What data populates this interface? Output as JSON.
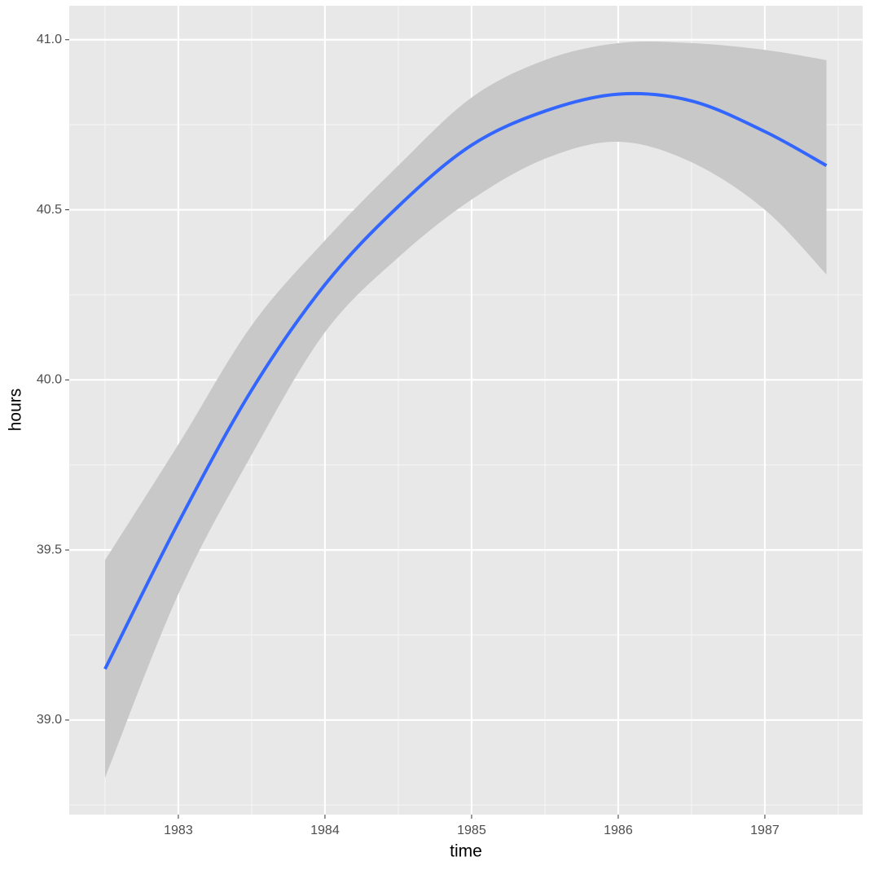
{
  "chart_data": {
    "type": "smooth",
    "x_label": "time",
    "y_label": "hours",
    "x": [
      1982.5,
      1983,
      1983.5,
      1984,
      1984.5,
      1985,
      1985.5,
      1986,
      1986.5,
      1987,
      1987.42
    ],
    "series": [
      {
        "color": "#3366ff",
        "values": [
          39.15,
          39.58,
          39.97,
          40.28,
          40.51,
          40.69,
          40.79,
          40.84,
          40.82,
          40.73,
          40.63
        ],
        "upper": [
          39.47,
          39.81,
          40.16,
          40.41,
          40.63,
          40.83,
          40.94,
          40.99,
          40.99,
          40.97,
          40.94
        ],
        "lower": [
          38.83,
          39.37,
          39.78,
          40.14,
          40.36,
          40.53,
          40.65,
          40.7,
          40.64,
          40.5,
          40.31
        ]
      }
    ],
    "band_color": "#c8c8c8",
    "xlim": [
      1982.256,
      1987.667
    ],
    "xticks": [
      1983,
      1984,
      1985,
      1986,
      1987
    ],
    "ylim": [
      38.722,
      41.1
    ],
    "yticks": [
      {
        "value": 39,
        "label": "39.0"
      },
      {
        "value": 39.5,
        "label": "39.5"
      },
      {
        "value": 40,
        "label": "40.0"
      },
      {
        "value": 40.5,
        "label": "40.5"
      },
      {
        "value": 41,
        "label": "41.0"
      }
    ],
    "grid": true
  }
}
